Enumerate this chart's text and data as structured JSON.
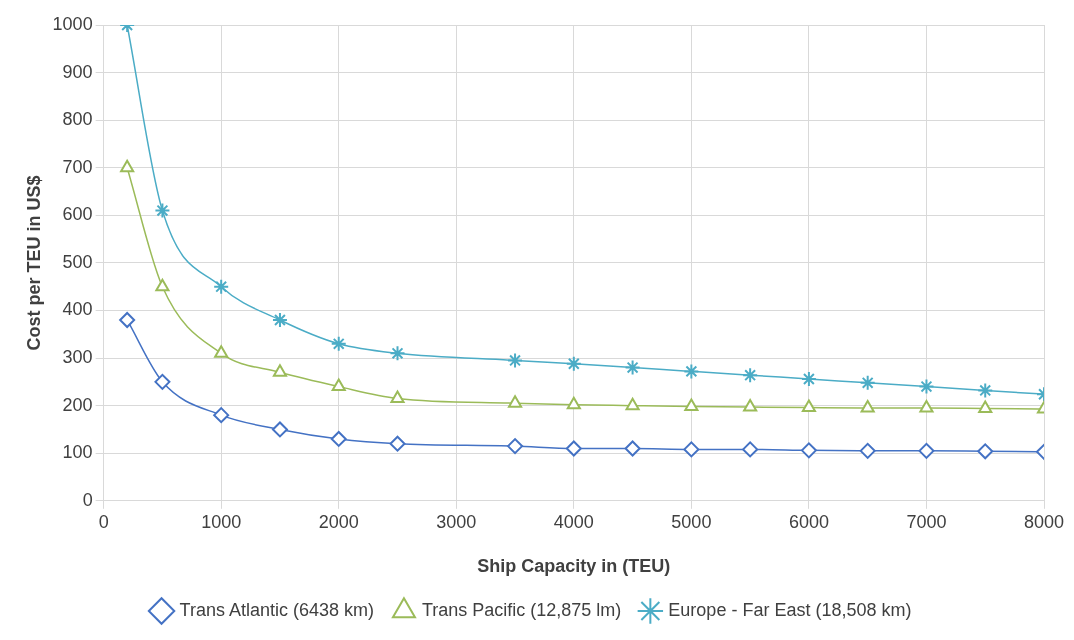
{
  "chart_data": {
    "type": "line",
    "xlabel": "Ship Capacity in (TEU)",
    "ylabel": "Cost per TEU in US$",
    "x": [
      200,
      500,
      1000,
      1500,
      2000,
      2500,
      3500,
      4000,
      4500,
      5000,
      5500,
      6000,
      6500,
      7000,
      7500,
      8000
    ],
    "series": [
      {
        "name": "Trans Atlantic (6438 km)",
        "color": "#4472c4",
        "marker": "diamond",
        "values": [
          380,
          250,
          180,
          150,
          130,
          120,
          115,
          110,
          110,
          108,
          108,
          106,
          105,
          105,
          104,
          103
        ]
      },
      {
        "name": "Trans Pacific (12,875 lm)",
        "color": "#9bbb59",
        "marker": "triangle",
        "values": [
          700,
          450,
          310,
          270,
          240,
          215,
          205,
          202,
          200,
          198,
          197,
          196,
          195,
          195,
          194,
          193
        ]
      },
      {
        "name": "Europe - Far East (18,508 km)",
        "color": "#4bacc6",
        "marker": "cross",
        "values": [
          1000,
          610,
          450,
          380,
          330,
          310,
          295,
          288,
          280,
          272,
          264,
          256,
          248,
          240,
          232,
          224
        ]
      }
    ],
    "xlim": [
      0,
      8000
    ],
    "xticks": [
      0,
      1000,
      2000,
      3000,
      4000,
      5000,
      6000,
      7000,
      8000
    ],
    "ylim": [
      0,
      1000
    ],
    "yticks": [
      0,
      100,
      200,
      300,
      400,
      500,
      600,
      700,
      800,
      900,
      1000
    ],
    "grid": true,
    "legend": "bottom",
    "line_style": "solid"
  }
}
